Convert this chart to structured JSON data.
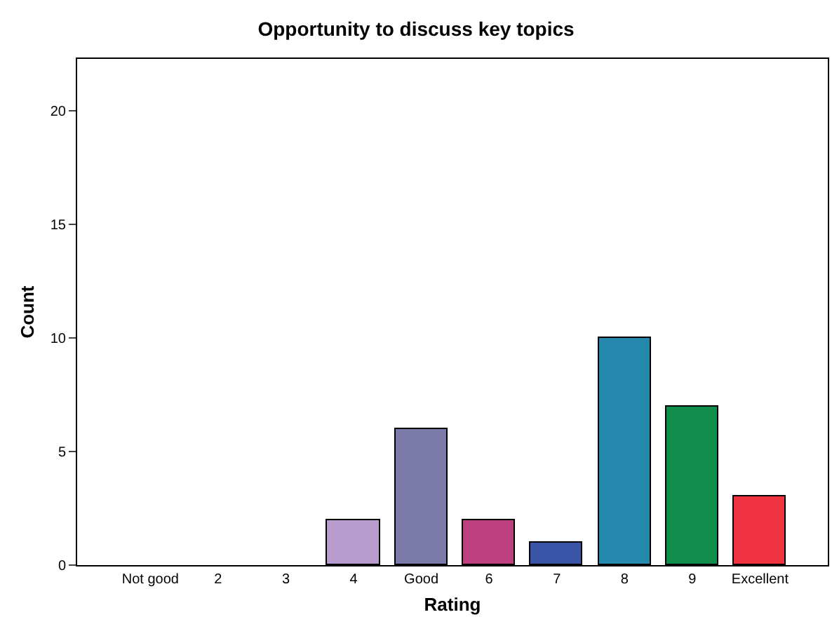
{
  "chart_data": {
    "type": "bar",
    "title": "Opportunity to discuss key topics",
    "xlabel": "Rating",
    "ylabel": "Count",
    "categories": [
      "Not good",
      "2",
      "3",
      "4",
      "Good",
      "6",
      "7",
      "8",
      "9",
      "Excellent"
    ],
    "values": [
      0,
      0,
      0,
      2,
      6,
      2,
      1,
      10,
      7,
      3
    ],
    "colors": [
      null,
      null,
      null,
      "#b99cce",
      "#7b7aa9",
      "#bd3f80",
      "#3a54a8",
      "#2489ad",
      "#108c4b",
      "#ef3340"
    ],
    "ylim": [
      0,
      22.3
    ],
    "yticks": [
      0,
      5,
      10,
      15,
      20
    ],
    "grid": false
  }
}
